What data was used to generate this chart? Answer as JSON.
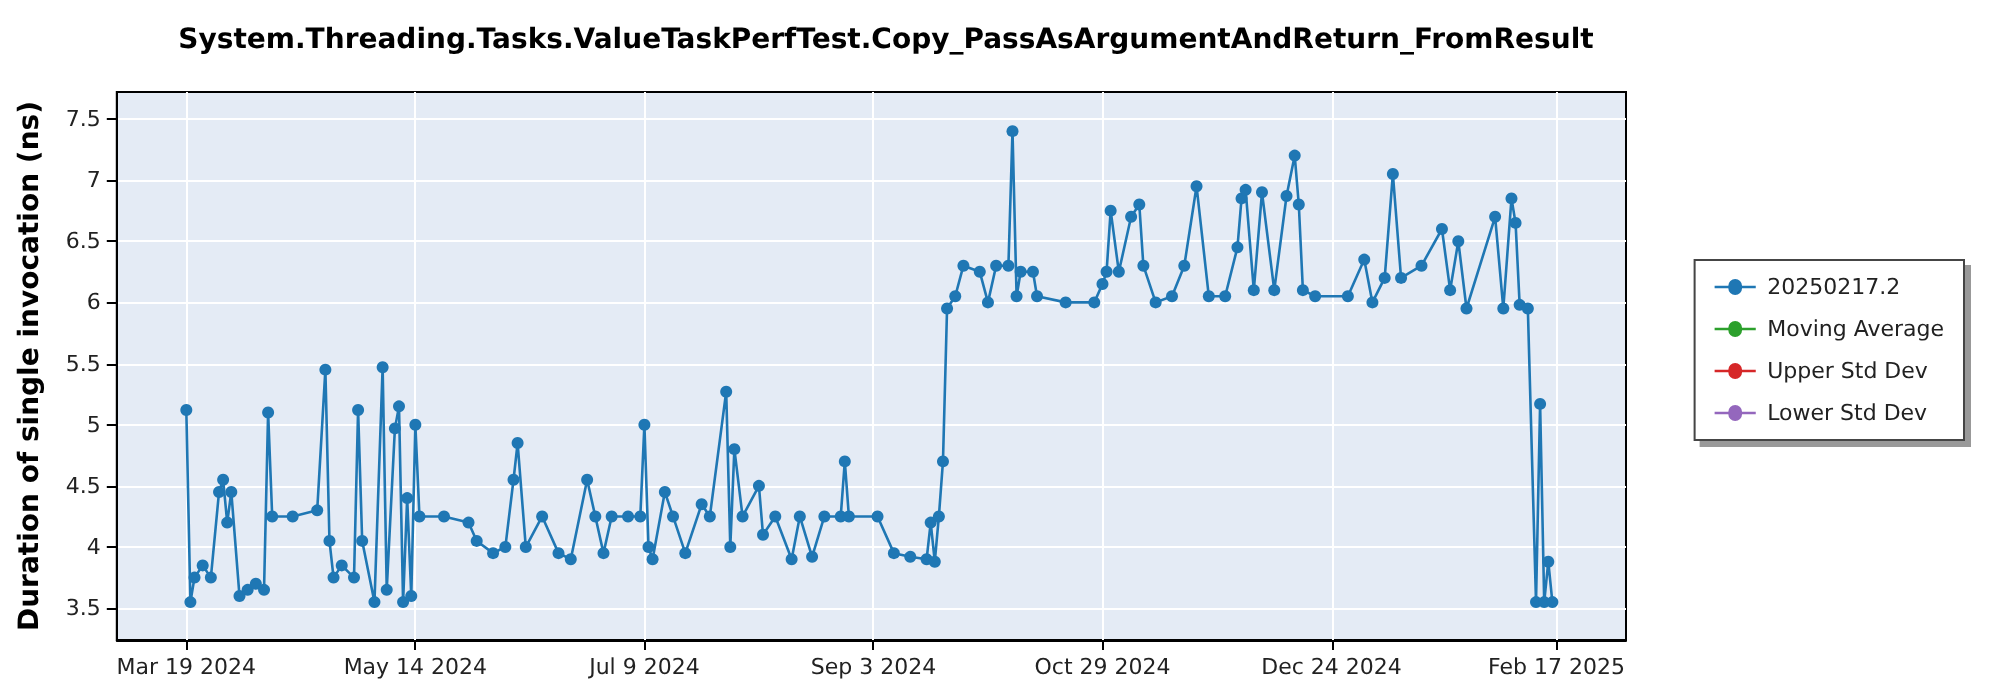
{
  "chart_data": {
    "type": "line",
    "title": "System.Threading.Tasks.ValueTaskPerfTest.Copy_PassAsArgumentAndReturn_FromResult",
    "ylabel": "Duration of single invocation (ns)",
    "x": [
      "2024-03-19",
      "2024-03-20",
      "2024-03-21",
      "2024-03-23",
      "2024-03-25",
      "2024-03-27",
      "2024-03-28",
      "2024-03-29",
      "2024-03-30",
      "2024-04-01",
      "2024-04-03",
      "2024-04-05",
      "2024-04-07",
      "2024-04-08",
      "2024-04-09",
      "2024-04-14",
      "2024-04-20",
      "2024-04-22",
      "2024-04-23",
      "2024-04-24",
      "2024-04-26",
      "2024-04-29",
      "2024-04-30",
      "2024-05-01",
      "2024-05-04",
      "2024-05-06",
      "2024-05-07",
      "2024-05-09",
      "2024-05-10",
      "2024-05-11",
      "2024-05-12",
      "2024-05-13",
      "2024-05-14",
      "2024-05-15",
      "2024-05-21",
      "2024-05-27",
      "2024-05-29",
      "2024-06-02",
      "2024-06-05",
      "2024-06-07",
      "2024-06-08",
      "2024-06-10",
      "2024-06-14",
      "2024-06-18",
      "2024-06-21",
      "2024-06-25",
      "2024-06-27",
      "2024-06-29",
      "2024-07-01",
      "2024-07-05",
      "2024-07-08",
      "2024-07-09",
      "2024-07-10",
      "2024-07-11",
      "2024-07-14",
      "2024-07-16",
      "2024-07-19",
      "2024-07-23",
      "2024-07-25",
      "2024-07-29",
      "2024-07-30",
      "2024-07-31",
      "2024-08-02",
      "2024-08-06",
      "2024-08-07",
      "2024-08-10",
      "2024-08-14",
      "2024-08-16",
      "2024-08-19",
      "2024-08-22",
      "2024-08-26",
      "2024-08-27",
      "2024-08-28",
      "2024-09-04",
      "2024-09-08",
      "2024-09-12",
      "2024-09-16",
      "2024-09-17",
      "2024-09-18",
      "2024-09-19",
      "2024-09-20",
      "2024-09-21",
      "2024-09-23",
      "2024-09-25",
      "2024-09-29",
      "2024-10-01",
      "2024-10-03",
      "2024-10-06",
      "2024-10-07",
      "2024-10-08",
      "2024-10-09",
      "2024-10-12",
      "2024-10-13",
      "2024-10-20",
      "2024-10-27",
      "2024-10-29",
      "2024-10-30",
      "2024-10-31",
      "2024-11-02",
      "2024-11-05",
      "2024-11-07",
      "2024-11-08",
      "2024-11-11",
      "2024-11-15",
      "2024-11-18",
      "2024-11-21",
      "2024-11-24",
      "2024-11-28",
      "2024-12-01",
      "2024-12-02",
      "2024-12-03",
      "2024-12-05",
      "2024-12-07",
      "2024-12-10",
      "2024-12-13",
      "2024-12-15",
      "2024-12-16",
      "2024-12-17",
      "2024-12-20",
      "2024-12-28",
      "2025-01-01",
      "2025-01-03",
      "2025-01-06",
      "2025-01-08",
      "2025-01-10",
      "2025-01-15",
      "2025-01-20",
      "2025-01-22",
      "2025-01-24",
      "2025-01-26",
      "2025-02-02",
      "2025-02-04",
      "2025-02-06",
      "2025-02-07",
      "2025-02-08",
      "2025-02-10",
      "2025-02-12",
      "2025-02-13",
      "2025-02-14",
      "2025-02-15",
      "2025-02-16"
    ],
    "series": [
      {
        "name": "20250217.2",
        "color": "#1f77b4",
        "values": [
          5.12,
          3.55,
          3.75,
          3.85,
          3.75,
          4.45,
          4.55,
          4.2,
          4.45,
          3.6,
          3.65,
          3.7,
          3.65,
          5.1,
          4.25,
          4.25,
          4.3,
          5.45,
          4.05,
          3.75,
          3.85,
          3.75,
          5.12,
          4.05,
          3.55,
          5.47,
          3.65,
          4.97,
          5.15,
          3.55,
          4.4,
          3.6,
          5.0,
          4.25,
          4.25,
          4.2,
          4.05,
          3.95,
          4.0,
          4.55,
          4.85,
          4.0,
          4.25,
          3.95,
          3.9,
          4.55,
          4.25,
          3.95,
          4.25,
          4.25,
          4.25,
          5.0,
          4.0,
          3.9,
          4.45,
          4.25,
          3.95,
          4.35,
          4.25,
          5.27,
          4.0,
          4.8,
          4.25,
          4.5,
          4.1,
          4.25,
          3.9,
          4.25,
          3.92,
          4.25,
          4.25,
          4.7,
          4.25,
          4.25,
          3.95,
          3.92,
          3.9,
          4.2,
          3.88,
          4.25,
          4.7,
          5.95,
          6.05,
          6.3,
          6.25,
          6.0,
          6.3,
          6.3,
          7.4,
          6.05,
          6.25,
          6.25,
          6.05,
          6.0,
          6.0,
          6.15,
          6.25,
          6.75,
          6.25,
          6.7,
          6.8,
          6.3,
          6.0,
          6.05,
          6.3,
          6.95,
          6.05,
          6.05,
          6.45,
          6.85,
          6.92,
          6.1,
          6.9,
          6.1,
          6.87,
          7.2,
          6.8,
          6.1,
          6.05,
          6.05,
          6.35,
          6.0,
          6.2,
          7.05,
          6.2,
          6.3,
          6.6,
          6.1,
          6.5,
          5.95,
          6.7,
          5.95,
          6.85,
          6.65,
          5.98,
          5.95,
          3.55,
          5.17,
          3.55,
          3.88,
          3.55
        ]
      },
      {
        "name": "Moving Average",
        "color": "#2ca02c",
        "values": [
          null,
          null,
          null,
          null,
          null,
          null,
          null,
          null,
          null,
          null,
          null,
          null,
          null,
          null,
          null,
          null,
          null,
          null,
          null,
          null,
          null,
          null,
          null,
          null,
          null,
          null,
          null,
          null,
          null,
          null,
          null,
          null,
          null,
          null,
          null,
          null,
          null,
          null,
          null,
          null,
          null,
          null,
          null,
          null,
          null,
          null,
          null,
          null,
          null,
          null,
          null,
          null,
          null,
          null,
          null,
          null,
          null,
          null,
          null,
          null,
          null,
          null,
          null,
          null,
          null,
          null,
          null,
          null,
          null,
          null,
          null,
          null,
          null,
          null,
          null,
          null,
          null,
          null,
          null,
          null,
          null,
          null,
          null,
          null,
          null,
          null,
          null,
          null,
          null,
          null,
          null,
          null,
          null,
          null,
          null,
          null,
          null,
          null,
          null,
          null,
          null,
          null,
          null,
          null,
          null,
          null,
          null,
          null,
          null,
          null,
          null,
          null,
          null,
          null,
          null,
          null,
          null,
          null,
          null,
          null,
          null,
          null,
          null,
          null,
          null,
          null,
          null,
          null,
          null,
          null,
          null,
          null,
          null,
          null,
          null,
          null,
          null,
          null,
          null,
          null,
          null
        ]
      },
      {
        "name": "Upper Std Dev",
        "color": "#d62728",
        "values": [
          null,
          null,
          null,
          null,
          null,
          null,
          null,
          null,
          null,
          null,
          null,
          null,
          null,
          null,
          null,
          null,
          null,
          null,
          null,
          null,
          null,
          null,
          null,
          null,
          null,
          null,
          null,
          null,
          null,
          null,
          null,
          null,
          null,
          null,
          null,
          null,
          null,
          null,
          null,
          null,
          null,
          null,
          null,
          null,
          null,
          null,
          null,
          null,
          null,
          null,
          null,
          null,
          null,
          null,
          null,
          null,
          null,
          null,
          null,
          null,
          null,
          null,
          null,
          null,
          null,
          null,
          null,
          null,
          null,
          null,
          null,
          null,
          null,
          null,
          null,
          null,
          null,
          null,
          null,
          null,
          null,
          null,
          null,
          null,
          null,
          null,
          null,
          null,
          null,
          null,
          null,
          null,
          null,
          null,
          null,
          null,
          null,
          null,
          null,
          null,
          null,
          null,
          null,
          null,
          null,
          null,
          null,
          null,
          null,
          null,
          null,
          null,
          null,
          null,
          null,
          null,
          null,
          null,
          null,
          null,
          null,
          null,
          null,
          null,
          null,
          null,
          null,
          null,
          null,
          null,
          null,
          null,
          null,
          null,
          null,
          null,
          null,
          null,
          null,
          null,
          null
        ]
      },
      {
        "name": "Lower Std Dev",
        "color": "#9467bd",
        "values": [
          null,
          null,
          null,
          null,
          null,
          null,
          null,
          null,
          null,
          null,
          null,
          null,
          null,
          null,
          null,
          null,
          null,
          null,
          null,
          null,
          null,
          null,
          null,
          null,
          null,
          null,
          null,
          null,
          null,
          null,
          null,
          null,
          null,
          null,
          null,
          null,
          null,
          null,
          null,
          null,
          null,
          null,
          null,
          null,
          null,
          null,
          null,
          null,
          null,
          null,
          null,
          null,
          null,
          null,
          null,
          null,
          null,
          null,
          null,
          null,
          null,
          null,
          null,
          null,
          null,
          null,
          null,
          null,
          null,
          null,
          null,
          null,
          null,
          null,
          null,
          null,
          null,
          null,
          null,
          null,
          null,
          null,
          null,
          null,
          null,
          null,
          null,
          null,
          null,
          null,
          null,
          null,
          null,
          null,
          null,
          null,
          null,
          null,
          null,
          null,
          null,
          null,
          null,
          null,
          null,
          null,
          null,
          null,
          null,
          null,
          null,
          null,
          null,
          null,
          null,
          null,
          null,
          null,
          null,
          null,
          null,
          null,
          null,
          null,
          null,
          null,
          null,
          null,
          null,
          null,
          null,
          null,
          null,
          null,
          null,
          null,
          null,
          null,
          null,
          null,
          null
        ]
      }
    ],
    "xlim": [
      "2024-03-02",
      "2025-03-06"
    ],
    "xticks": [
      {
        "value": "2024-03-19",
        "label": "Mar 19 2024"
      },
      {
        "value": "2024-05-14",
        "label": "May 14 2024"
      },
      {
        "value": "2024-07-09",
        "label": "Jul 9 2024"
      },
      {
        "value": "2024-09-03",
        "label": "Sep 3 2024"
      },
      {
        "value": "2024-10-29",
        "label": "Oct 29 2024"
      },
      {
        "value": "2024-12-24",
        "label": "Dec 24 2024"
      },
      {
        "value": "2025-02-17",
        "label": "Feb 17 2025"
      }
    ],
    "ylim": [
      3.24,
      7.72
    ],
    "yticks": [
      3.5,
      4,
      4.5,
      5,
      5.5,
      6,
      6.5,
      7,
      7.5
    ],
    "grid": true,
    "legend": "right",
    "marker": "circle",
    "line_style": "solid"
  }
}
